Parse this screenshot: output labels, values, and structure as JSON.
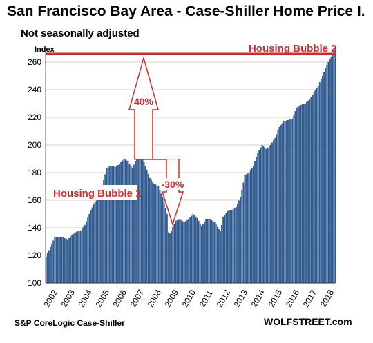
{
  "chart_data": {
    "type": "bar",
    "title": "San Francisco Bay Area - Case-Shiller Home Price I.",
    "subtitle": "Not seasonally adjusted",
    "ylabel": "Index",
    "ylim": [
      100,
      270
    ],
    "yticks": [
      100,
      120,
      140,
      160,
      180,
      200,
      220,
      240,
      260
    ],
    "grid": "horizontal",
    "bar_color": "#2e5f9b",
    "annotation_color": "#d42a2a",
    "xtick_labels": [
      "2002",
      "2003",
      "2004",
      "2005",
      "2006",
      "2007",
      "2008",
      "2009",
      "2010",
      "2011",
      "2012",
      "2013",
      "2014",
      "2015",
      "2016",
      "2017",
      "2018"
    ],
    "x_start": 2002,
    "x_end": 2018.75,
    "series": [
      {
        "x": [
          2002.0,
          2002.25,
          2002.5,
          2002.75,
          2003.0,
          2003.25,
          2003.5,
          2003.75,
          2004.0,
          2004.25,
          2004.5,
          2004.75,
          2005.0,
          2005.25,
          2005.5,
          2005.75,
          2006.0,
          2006.25,
          2006.5,
          2006.75,
          2007.0,
          2007.25,
          2007.5,
          2007.75,
          2008.0,
          2008.25,
          2008.5,
          2008.75,
          2009.0,
          2009.1,
          2009.25,
          2009.5,
          2009.75,
          2010.0,
          2010.25,
          2010.5,
          2010.75,
          2011.0,
          2011.25,
          2011.5,
          2011.75,
          2012.0,
          2012.1,
          2012.25,
          2012.5,
          2012.75,
          2013.0,
          2013.25,
          2013.5,
          2013.75,
          2014.0,
          2014.25,
          2014.5,
          2014.75,
          2015.0,
          2015.25,
          2015.5,
          2015.75,
          2016.0,
          2016.25,
          2016.5,
          2016.75,
          2017.0,
          2017.25,
          2017.5,
          2017.75,
          2018.0,
          2018.25,
          2018.5,
          2018.7
        ],
        "values": [
          119,
          126,
          133,
          133,
          133,
          131,
          135,
          137,
          138,
          142,
          150,
          157,
          161,
          170,
          183,
          185,
          184,
          186,
          190,
          188,
          183,
          191,
          192,
          185,
          176,
          172,
          170,
          162,
          150,
          134,
          138,
          145,
          146,
          144,
          146,
          150,
          147,
          141,
          146,
          146,
          144,
          139,
          137,
          148,
          152,
          153,
          155,
          162,
          178,
          180,
          185,
          194,
          200,
          197,
          200,
          205,
          213,
          217,
          218,
          219,
          227,
          229,
          230,
          233,
          238,
          243,
          250,
          258,
          264,
          270
        ]
      }
    ],
    "annotations": {
      "bubble1": "Housing Bubble 1",
      "bubble2": "Housing Bubble 2",
      "rise": "40%",
      "drop": "-30%"
    },
    "source_left": "S&P CoreLogic Case-Shiller",
    "source_right": "WOLFSTREET.com"
  }
}
